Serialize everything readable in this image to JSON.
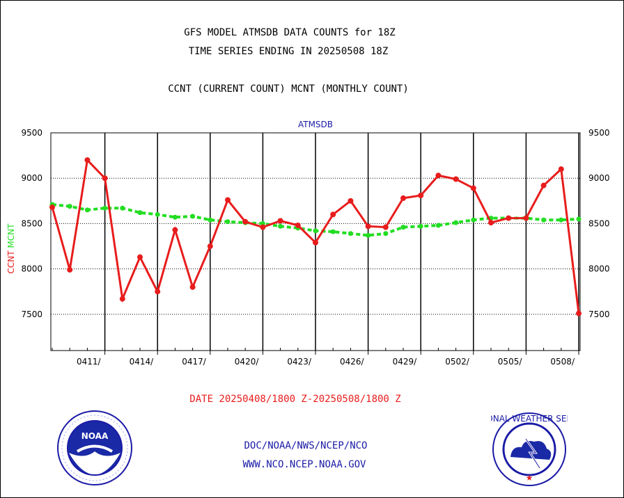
{
  "page": {
    "title_line1": "GFS MODEL ATMSDB DATA COUNTS for 18Z",
    "title_line2": "TIME SERIES ENDING IN 20250508 18Z",
    "subtitle": "CCNT (CURRENT COUNT) MCNT (MONTHLY COUNT)",
    "date_range": "DATE 20250408/1800 Z-20250508/1800 Z",
    "footer_line1": "DOC/NOAA/NWS/NCEP/NCO",
    "footer_line2": "WWW.NCO.NCEP.NOAA.GOV"
  },
  "logos": {
    "noaa_text": "NOAA",
    "nws_ring_text": "NATIONAL WEATHER SERVICE"
  },
  "colors": {
    "ccnt": "#e81c1c",
    "mcnt": "#22dd22",
    "title_blue": "#1a1aa6"
  },
  "chart_data": {
    "type": "line",
    "panel_label": "ATMSDB",
    "ylabel_ccnt": "CCNT",
    "ylabel_mcnt": "MCNT",
    "ylim": [
      7100,
      9500
    ],
    "yticks": [
      7500,
      8000,
      8500,
      9000,
      9500
    ],
    "xticks": [
      "0411/",
      "0414/",
      "0417/",
      "0420/",
      "0423/",
      "0426/",
      "0429/",
      "0502/",
      "0505/",
      "0508/"
    ],
    "grid": true,
    "series": [
      {
        "name": "CCNT",
        "values": [
          8680,
          7990,
          9200,
          9000,
          7670,
          8130,
          7750,
          8430,
          7800,
          8250,
          8760,
          8520,
          8460,
          8530,
          8480,
          8290,
          8600,
          8750,
          8470,
          8460,
          8780,
          8810,
          9030,
          8990,
          8890,
          8510,
          8560,
          8560,
          8920,
          9100,
          7510
        ]
      },
      {
        "name": "MCNT",
        "values": [
          8710,
          8690,
          8650,
          8670,
          8670,
          8620,
          8600,
          8570,
          8580,
          8540,
          8520,
          8510,
          8500,
          8470,
          8450,
          8420,
          8410,
          8390,
          8370,
          8390,
          8460,
          8470,
          8480,
          8510,
          8540,
          8560,
          8560,
          8560,
          8540,
          8540,
          8550
        ]
      }
    ]
  }
}
